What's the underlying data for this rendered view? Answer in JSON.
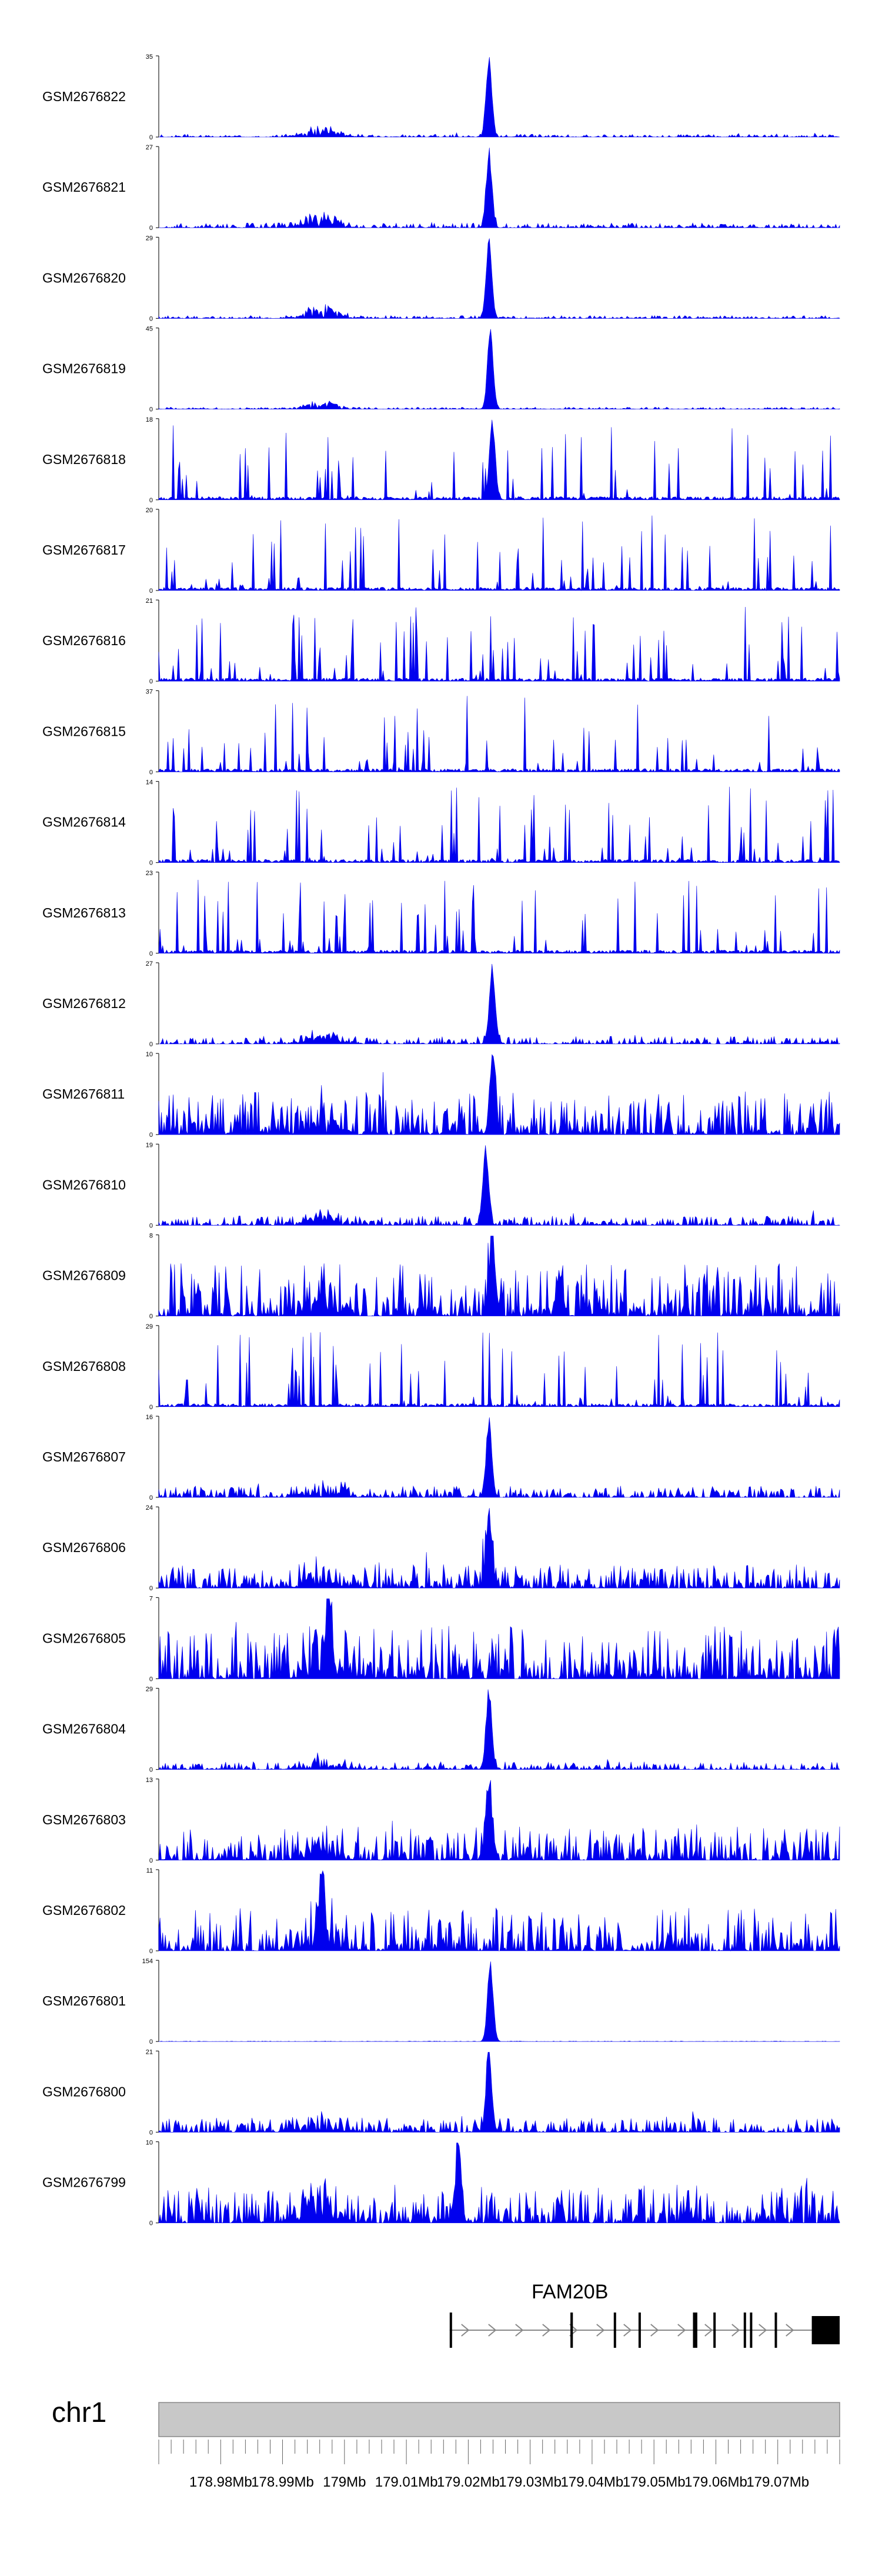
{
  "chart_data": {
    "type": "area",
    "title": "",
    "track_color": "#0000ee",
    "tracks": [
      {
        "name": "GSM2676822",
        "ymax": 35,
        "seed": 22,
        "noise": 0.03,
        "style": "dense",
        "peak": {
          "center": 0.485,
          "height": 1.0
        },
        "bump": 0.14
      },
      {
        "name": "GSM2676821",
        "ymax": 27,
        "seed": 21,
        "noise": 0.05,
        "style": "dense",
        "peak": {
          "center": 0.485,
          "height": 0.95
        },
        "bump": 0.2
      },
      {
        "name": "GSM2676820",
        "ymax": 29,
        "seed": 20,
        "noise": 0.03,
        "style": "dense",
        "peak": {
          "center": 0.485,
          "height": 1.0
        },
        "bump": 0.18
      },
      {
        "name": "GSM2676819",
        "ymax": 45,
        "seed": 19,
        "noise": 0.02,
        "style": "dense",
        "peak": {
          "center": 0.487,
          "height": 1.0
        },
        "bump": 0.1
      },
      {
        "name": "GSM2676818",
        "ymax": 18,
        "seed": 18,
        "noise": 0.3,
        "style": "sparse",
        "peak": {
          "center": 0.49,
          "height": 1.0
        },
        "bump": 0.0
      },
      {
        "name": "GSM2676817",
        "ymax": 20,
        "seed": 17,
        "noise": 0.45,
        "style": "sparse",
        "peak": null,
        "bump": 0.0
      },
      {
        "name": "GSM2676816",
        "ymax": 21,
        "seed": 16,
        "noise": 0.4,
        "style": "sparse",
        "peak": null,
        "bump": 0.0
      },
      {
        "name": "GSM2676815",
        "ymax": 37,
        "seed": 15,
        "noise": 0.35,
        "style": "sparse",
        "peak": null,
        "bump": 0.0
      },
      {
        "name": "GSM2676814",
        "ymax": 14,
        "seed": 14,
        "noise": 0.5,
        "style": "sparse",
        "peak": null,
        "bump": 0.0
      },
      {
        "name": "GSM2676813",
        "ymax": 23,
        "seed": 13,
        "noise": 0.35,
        "style": "sparse",
        "peak": null,
        "bump": 0.0
      },
      {
        "name": "GSM2676812",
        "ymax": 27,
        "seed": 12,
        "noise": 0.08,
        "style": "dense",
        "peak": {
          "center": 0.49,
          "height": 1.0
        },
        "bump": 0.12
      },
      {
        "name": "GSM2676811",
        "ymax": 10,
        "seed": 11,
        "noise": 0.45,
        "style": "dense",
        "peak": {
          "center": 0.49,
          "height": 0.95
        },
        "bump": 0.3
      },
      {
        "name": "GSM2676810",
        "ymax": 19,
        "seed": 10,
        "noise": 0.1,
        "style": "dense",
        "peak": {
          "center": 0.48,
          "height": 1.0
        },
        "bump": 0.15
      },
      {
        "name": "GSM2676809",
        "ymax": 8,
        "seed": 9,
        "noise": 0.55,
        "style": "dense",
        "peak": {
          "center": 0.49,
          "height": 1.0
        },
        "bump": 0.3
      },
      {
        "name": "GSM2676808",
        "ymax": 29,
        "seed": 8,
        "noise": 0.3,
        "style": "sparse",
        "peak": null,
        "bump": 0.0
      },
      {
        "name": "GSM2676807",
        "ymax": 16,
        "seed": 7,
        "noise": 0.12,
        "style": "dense",
        "peak": {
          "center": 0.485,
          "height": 1.0
        },
        "bump": 0.2
      },
      {
        "name": "GSM2676806",
        "ymax": 24,
        "seed": 6,
        "noise": 0.25,
        "style": "dense",
        "peak": {
          "center": 0.485,
          "height": 1.0
        },
        "bump": 0.2
      },
      {
        "name": "GSM2676805",
        "ymax": 7,
        "seed": 5,
        "noise": 0.55,
        "style": "dense",
        "peak": {
          "center": 0.25,
          "height": 1.0
        },
        "bump": 0.2
      },
      {
        "name": "GSM2676804",
        "ymax": 29,
        "seed": 4,
        "noise": 0.08,
        "style": "dense",
        "peak": {
          "center": 0.485,
          "height": 1.0
        },
        "bump": 0.15
      },
      {
        "name": "GSM2676803",
        "ymax": 13,
        "seed": 3,
        "noise": 0.35,
        "style": "dense",
        "peak": {
          "center": 0.485,
          "height": 1.0
        },
        "bump": 0.2
      },
      {
        "name": "GSM2676802",
        "ymax": 11,
        "seed": 2,
        "noise": 0.45,
        "style": "dense",
        "peak": {
          "center": 0.24,
          "height": 1.0
        },
        "bump": 0.25
      },
      {
        "name": "GSM2676801",
        "ymax": 154,
        "seed": 1,
        "noise": 0.005,
        "style": "dense",
        "peak": {
          "center": 0.487,
          "height": 1.0
        },
        "bump": 0.0
      },
      {
        "name": "GSM2676800",
        "ymax": 21,
        "seed": 100,
        "noise": 0.15,
        "style": "dense",
        "peak": {
          "center": 0.485,
          "height": 1.0
        },
        "bump": 0.2
      },
      {
        "name": "GSM2676799",
        "ymax": 10,
        "seed": 99,
        "noise": 0.4,
        "style": "dense",
        "peak": {
          "center": 0.44,
          "height": 1.0
        },
        "bump": 0.35
      }
    ],
    "x_axis": {
      "chromosome": "chr1",
      "xlim": [
        178.97,
        179.08
      ],
      "unit": "Mb",
      "tick_labels": [
        "178.98Mb",
        "178.99Mb",
        "179Mb",
        "179.01Mb",
        "179.02Mb",
        "179.03Mb",
        "179.04Mb",
        "179.05Mb",
        "179.06Mb",
        "179.07Mb"
      ],
      "tick_values": [
        178.98,
        178.99,
        179.0,
        179.01,
        179.02,
        179.03,
        179.04,
        179.05,
        179.06,
        179.07
      ]
    },
    "gene": {
      "name": "FAM20B",
      "start": 179.017,
      "end": 179.08,
      "strand": "+",
      "exons": [
        {
          "start": 179.017,
          "end": 179.0173
        },
        {
          "start": 179.0365,
          "end": 179.0369
        },
        {
          "start": 179.0435,
          "end": 179.0438
        },
        {
          "start": 179.0475,
          "end": 179.0478
        },
        {
          "start": 179.0563,
          "end": 179.057
        },
        {
          "start": 179.0596,
          "end": 179.0599
        },
        {
          "start": 179.0645,
          "end": 179.0648
        },
        {
          "start": 179.0655,
          "end": 179.0657
        },
        {
          "start": 179.0695,
          "end": 179.0698
        },
        {
          "start": 179.0755,
          "end": 179.08
        }
      ]
    }
  }
}
